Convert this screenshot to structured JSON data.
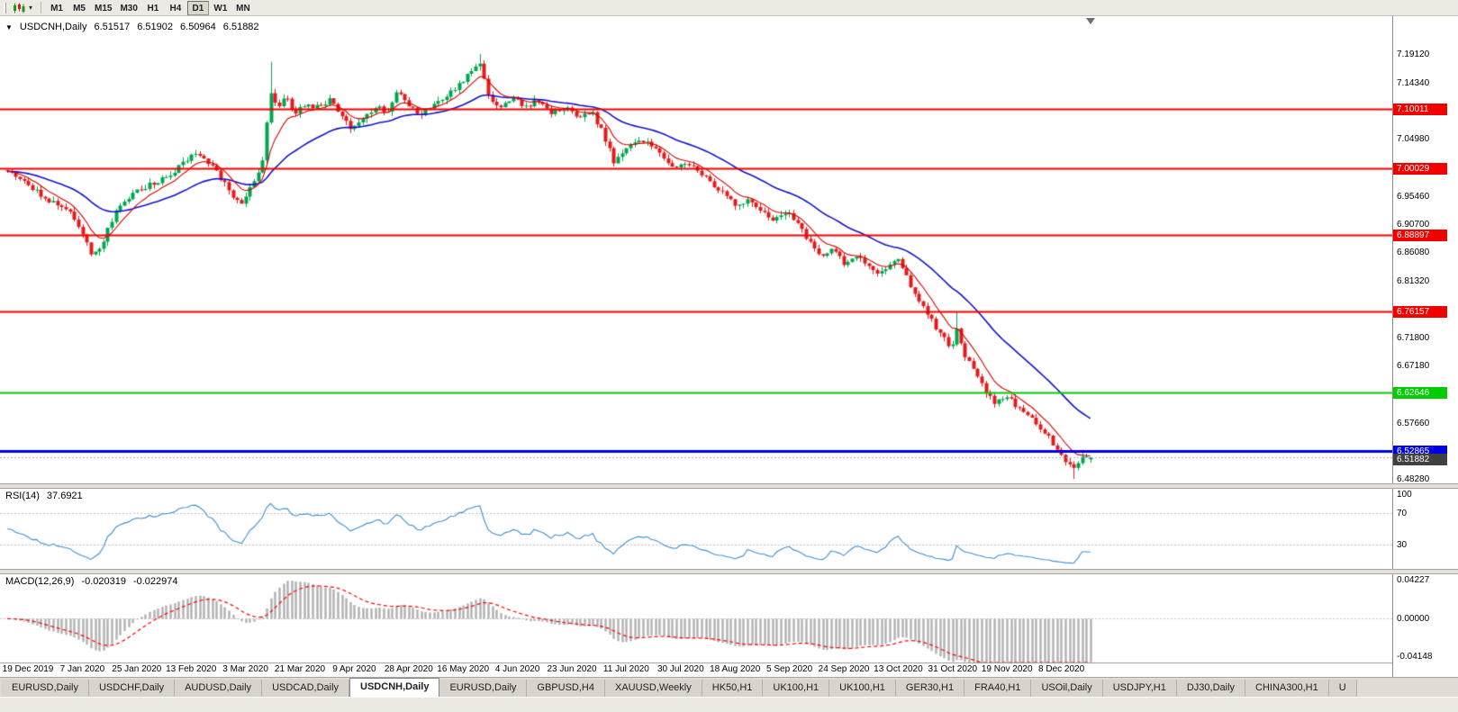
{
  "icons": {
    "symbol_marker": "▼",
    "dropdown_caret": "▾"
  },
  "toolbar": {
    "timeframes": [
      "M1",
      "M5",
      "M15",
      "M30",
      "H1",
      "H4",
      "D1",
      "W1",
      "MN"
    ],
    "active_timeframe": "D1"
  },
  "chart_header": {
    "symbol": "USDCNH,Daily",
    "open": "6.51517",
    "high": "6.51902",
    "low": "6.50964",
    "close": "6.51882"
  },
  "tabs": {
    "items": [
      "EURUSD,Daily",
      "USDCHF,Daily",
      "AUDUSD,Daily",
      "USDCAD,Daily",
      "USDCNH,Daily",
      "EURUSD,Daily",
      "GBPUSD,H4",
      "XAUUSD,Weekly",
      "HK50,H1",
      "UK100,H1",
      "UK100,H1",
      "GER30,H1",
      "FRA40,H1",
      "USOil,Daily",
      "USDJPY,H1",
      "DJ30,Daily",
      "CHINA300,H1",
      "U"
    ],
    "active_index": 4
  },
  "chart_data": {
    "type": "candlestick",
    "title": "USDCNH,Daily",
    "symbol": "USDCNH",
    "timeframe": "Daily",
    "x_axis_dates": [
      "19 Dec 2019",
      "7 Jan 2020",
      "25 Jan 2020",
      "13 Feb 2020",
      "3 Mar 2020",
      "21 Mar 2020",
      "9 Apr 2020",
      "28 Apr 2020",
      "16 May 2020",
      "4 Jun 2020",
      "23 Jun 2020",
      "11 Jul 2020",
      "30 Jul 2020",
      "18 Aug 2020",
      "5 Sep 2020",
      "24 Sep 2020",
      "13 Oct 2020",
      "31 Oct 2020",
      "19 Nov 2020",
      "8 Dec 2020"
    ],
    "y_axis_ticks": [
      "7.19120",
      "7.14340",
      "7.04980",
      "6.95460",
      "6.90700",
      "6.86080",
      "6.81320",
      "6.71800",
      "6.67180",
      "6.57660",
      "6.48280"
    ],
    "y_axis_range": [
      6.4753,
      7.2212
    ],
    "levels": [
      {
        "price": 7.10011,
        "label": "7.10011",
        "color": "#f20000",
        "width": 2
      },
      {
        "price": 7.00029,
        "label": "7.00029",
        "color": "#f20000",
        "width": 2
      },
      {
        "price": 6.88897,
        "label": "6.88897",
        "color": "#f20000",
        "width": 2
      },
      {
        "price": 6.76157,
        "label": "6.76157",
        "color": "#f20000",
        "width": 2
      },
      {
        "price": 6.62646,
        "label": "6.62646",
        "color": "#00cc00",
        "width": 2
      },
      {
        "price": 6.52865,
        "label": "6.52865",
        "color": "#0000e6",
        "width": 3
      }
    ],
    "bid": {
      "price": 6.51882,
      "label": "6.51882"
    },
    "candle_count": 260,
    "price_path": [
      [
        0.0,
        6.998
      ],
      [
        0.018,
        6.975
      ],
      [
        0.039,
        6.945
      ],
      [
        0.056,
        6.932
      ],
      [
        0.068,
        6.9
      ],
      [
        0.076,
        6.862
      ],
      [
        0.083,
        6.856
      ],
      [
        0.091,
        6.892
      ],
      [
        0.103,
        6.938
      ],
      [
        0.118,
        6.962
      ],
      [
        0.134,
        6.976
      ],
      [
        0.151,
        6.988
      ],
      [
        0.163,
        7.012
      ],
      [
        0.172,
        7.028
      ],
      [
        0.182,
        7.018
      ],
      [
        0.192,
        6.998
      ],
      [
        0.205,
        6.962
      ],
      [
        0.215,
        6.938
      ],
      [
        0.225,
        6.972
      ],
      [
        0.235,
        7.01
      ],
      [
        0.24,
        7.085
      ],
      [
        0.244,
        7.132
      ],
      [
        0.25,
        7.098
      ],
      [
        0.257,
        7.128
      ],
      [
        0.264,
        7.092
      ],
      [
        0.275,
        7.108
      ],
      [
        0.287,
        7.102
      ],
      [
        0.298,
        7.116
      ],
      [
        0.308,
        7.092
      ],
      [
        0.318,
        7.064
      ],
      [
        0.329,
        7.086
      ],
      [
        0.34,
        7.104
      ],
      [
        0.35,
        7.094
      ],
      [
        0.36,
        7.132
      ],
      [
        0.37,
        7.108
      ],
      [
        0.381,
        7.088
      ],
      [
        0.393,
        7.104
      ],
      [
        0.405,
        7.122
      ],
      [
        0.418,
        7.142
      ],
      [
        0.428,
        7.162
      ],
      [
        0.437,
        7.172
      ],
      [
        0.445,
        7.118
      ],
      [
        0.456,
        7.098
      ],
      [
        0.466,
        7.122
      ],
      [
        0.477,
        7.102
      ],
      [
        0.489,
        7.114
      ],
      [
        0.502,
        7.094
      ],
      [
        0.515,
        7.102
      ],
      [
        0.528,
        7.086
      ],
      [
        0.54,
        7.094
      ],
      [
        0.55,
        7.058
      ],
      [
        0.56,
        7.012
      ],
      [
        0.57,
        7.028
      ],
      [
        0.582,
        7.052
      ],
      [
        0.593,
        7.04
      ],
      [
        0.605,
        7.018
      ],
      [
        0.616,
        7.0
      ],
      [
        0.626,
        7.01
      ],
      [
        0.638,
        6.994
      ],
      [
        0.65,
        6.976
      ],
      [
        0.661,
        6.958
      ],
      [
        0.673,
        6.938
      ],
      [
        0.684,
        6.95
      ],
      [
        0.696,
        6.932
      ],
      [
        0.708,
        6.912
      ],
      [
        0.719,
        6.928
      ],
      [
        0.731,
        6.904
      ],
      [
        0.741,
        6.878
      ],
      [
        0.752,
        6.852
      ],
      [
        0.762,
        6.866
      ],
      [
        0.772,
        6.842
      ],
      [
        0.782,
        6.856
      ],
      [
        0.793,
        6.838
      ],
      [
        0.804,
        6.82
      ],
      [
        0.814,
        6.836
      ],
      [
        0.823,
        6.848
      ],
      [
        0.833,
        6.806
      ],
      [
        0.843,
        6.778
      ],
      [
        0.853,
        6.748
      ],
      [
        0.863,
        6.72
      ],
      [
        0.872,
        6.7
      ],
      [
        0.877,
        6.742
      ],
      [
        0.882,
        6.696
      ],
      [
        0.892,
        6.664
      ],
      [
        0.901,
        6.636
      ],
      [
        0.911,
        6.606
      ],
      [
        0.921,
        6.622
      ],
      [
        0.931,
        6.606
      ],
      [
        0.941,
        6.59
      ],
      [
        0.951,
        6.574
      ],
      [
        0.959,
        6.556
      ],
      [
        0.968,
        6.536
      ],
      [
        0.976,
        6.514
      ],
      [
        0.984,
        6.502
      ],
      [
        0.991,
        6.516
      ],
      [
        1.0,
        6.5188
      ]
    ],
    "spikes": [
      {
        "f": 0.244,
        "high": 7.178
      },
      {
        "f": 0.437,
        "high": 7.1912
      },
      {
        "f": 0.877,
        "high": 6.7616
      },
      {
        "f": 0.984,
        "low": 6.4828
      }
    ],
    "colors": {
      "up": "#00a650",
      "down": "#e21b1b",
      "ma_fast": "#d80000",
      "ma_slow": "#1414c8",
      "rsi": "#3e8fd0",
      "macd_hist": "#b0b0b0",
      "macd_signal": "#ff0000"
    },
    "ma_periods": {
      "fast": 8,
      "slow": 30
    },
    "indicators": {
      "rsi": {
        "name": "RSI(14)",
        "value": "37.6921",
        "period": 14,
        "levels": [
          70,
          30
        ],
        "axis_labels": [
          "100",
          "70",
          "30"
        ],
        "range": [
          0,
          100
        ]
      },
      "macd": {
        "name": "MACD(12,26,9)",
        "value_main": "-0.020319",
        "value_signal": "-0.022974",
        "fast": 12,
        "slow": 26,
        "signal": 9,
        "axis_top": "0.04227",
        "axis_zero": "0.00000",
        "axis_bottom": "-0.04148",
        "range": [
          -0.04148,
          0.04227
        ]
      }
    }
  }
}
